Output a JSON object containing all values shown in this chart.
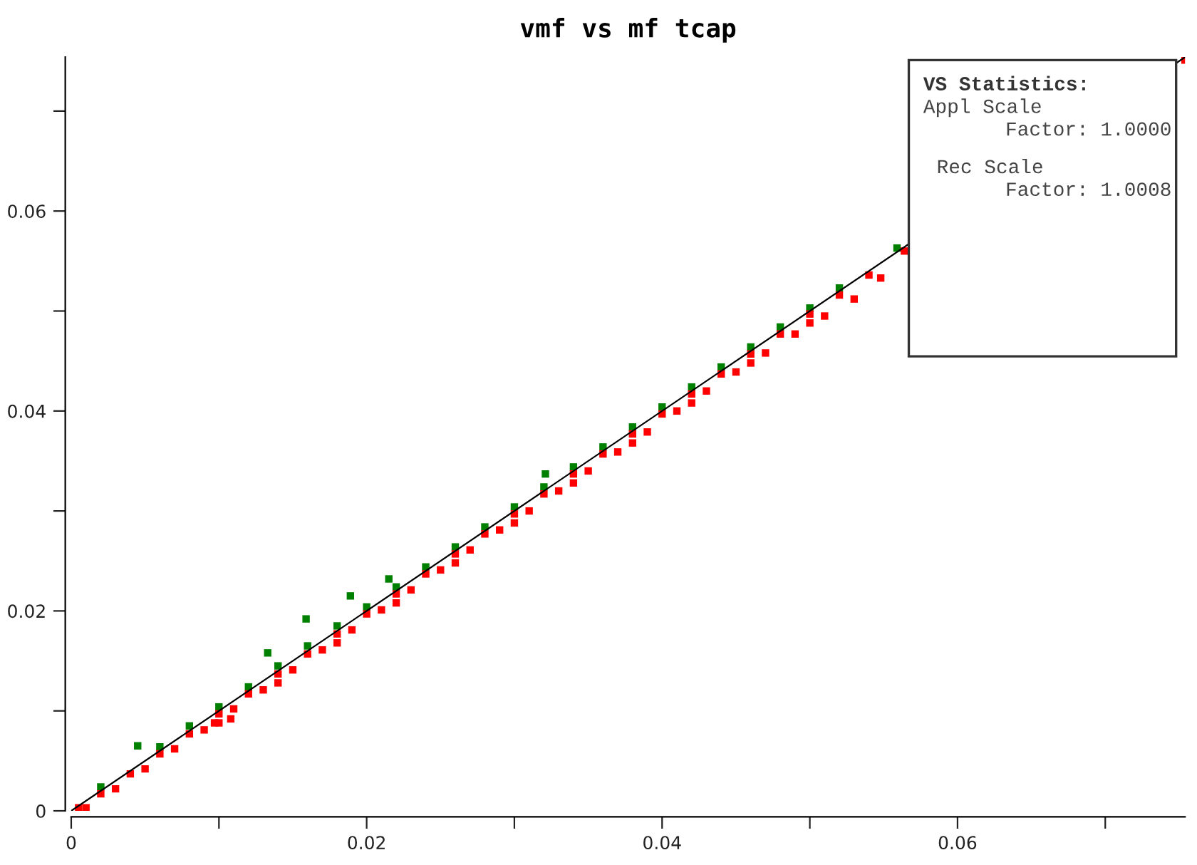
{
  "chart_data": {
    "type": "scatter",
    "title": "vmf vs mf tcap",
    "annotations": [
      "VS Statistics:",
      "Appl Scale\nFactor: 1.0000",
      "Rec Scale\nFactor: 1.0008"
    ],
    "xlim": [
      0,
      0.0754
    ],
    "ylim": [
      0,
      0.0754
    ],
    "xticks": [
      0,
      {
        "value": 0.01,
        "label": null
      },
      0.02,
      {
        "value": 0.03,
        "label": null
      },
      0.04,
      {
        "value": 0.05,
        "label": null
      },
      0.06,
      {
        "value": 0.07,
        "label": null
      }
    ],
    "yticks": [
      0,
      {
        "value": 0.01,
        "label": null
      },
      0.02,
      {
        "value": 0.03,
        "label": null
      },
      0.04,
      {
        "value": 0.05,
        "label": null
      },
      0.06,
      {
        "value": 0.07,
        "label": null
      }
    ],
    "grid": false,
    "legend": false,
    "series": [
      {
        "color": "#008000",
        "marker": "square",
        "x": [
          0.002,
          0.0045,
          0.006,
          0.008,
          0.01,
          0.012,
          0.0133,
          0.014,
          0.0159,
          0.016,
          0.0189,
          0.018,
          0.02,
          0.0215,
          0.022,
          0.024,
          0.026,
          0.028,
          0.03,
          0.0321,
          0.032,
          0.034,
          0.036,
          0.038,
          0.04,
          0.042,
          0.044,
          0.046,
          0.048,
          0.05,
          0.052,
          0.0559
        ],
        "values": [
          0.0024,
          0.0065,
          0.0064,
          0.0085,
          0.0104,
          0.0124,
          0.0158,
          0.0145,
          0.0192,
          0.0165,
          0.0215,
          0.0185,
          0.0204,
          0.0232,
          0.0224,
          0.0244,
          0.0264,
          0.0284,
          0.0304,
          0.0337,
          0.0324,
          0.0344,
          0.0364,
          0.0384,
          0.0404,
          0.0424,
          0.0444,
          0.0464,
          0.0484,
          0.0503,
          0.0523,
          0.0563
        ]
      },
      {
        "color": "#ff0000",
        "marker": "square",
        "x": [
          0.0005,
          0.002,
          0.004,
          0.006,
          0.008,
          0.01,
          0.012,
          0.014,
          0.016,
          0.018,
          0.02,
          0.022,
          0.024,
          0.026,
          0.028,
          0.03,
          0.032,
          0.034,
          0.036,
          0.038,
          0.04,
          0.042,
          0.044,
          0.046,
          0.048,
          0.05,
          0.052,
          0.054,
          0.001,
          0.003,
          0.005,
          0.007,
          0.009,
          0.0097,
          0.0108,
          0.011,
          0.013,
          0.015,
          0.017,
          0.019,
          0.021,
          0.023,
          0.025,
          0.027,
          0.029,
          0.031,
          0.033,
          0.035,
          0.037,
          0.039,
          0.041,
          0.043,
          0.045,
          0.047,
          0.049,
          0.051,
          0.053,
          0.0548,
          0.0564,
          0.0754,
          0.01,
          0.014,
          0.018,
          0.022,
          0.026,
          0.03,
          0.034,
          0.038,
          0.042,
          0.046,
          0.05
        ],
        "values": [
          0.0003,
          0.0017,
          0.0037,
          0.0057,
          0.0077,
          0.0097,
          0.0117,
          0.0137,
          0.0157,
          0.0177,
          0.0197,
          0.0217,
          0.0237,
          0.0257,
          0.0277,
          0.0297,
          0.0317,
          0.0337,
          0.0357,
          0.0377,
          0.0397,
          0.0417,
          0.0437,
          0.0457,
          0.0477,
          0.0497,
          0.0516,
          0.0536,
          0.0003,
          0.0022,
          0.0042,
          0.0062,
          0.0081,
          0.0088,
          0.0092,
          0.0102,
          0.0121,
          0.0141,
          0.0161,
          0.0181,
          0.0201,
          0.0221,
          0.0241,
          0.0261,
          0.0281,
          0.03,
          0.032,
          0.034,
          0.0359,
          0.0379,
          0.04,
          0.042,
          0.0439,
          0.0458,
          0.0477,
          0.0495,
          0.0512,
          0.0533,
          0.056,
          0.0751,
          0.0088,
          0.0128,
          0.0168,
          0.0208,
          0.0248,
          0.0288,
          0.0328,
          0.0368,
          0.0408,
          0.0448,
          0.0488
        ]
      },
      {
        "type": "line",
        "color": "#000000",
        "x": [
          0,
          0.0754
        ],
        "values": [
          0,
          0.0754
        ]
      }
    ]
  }
}
